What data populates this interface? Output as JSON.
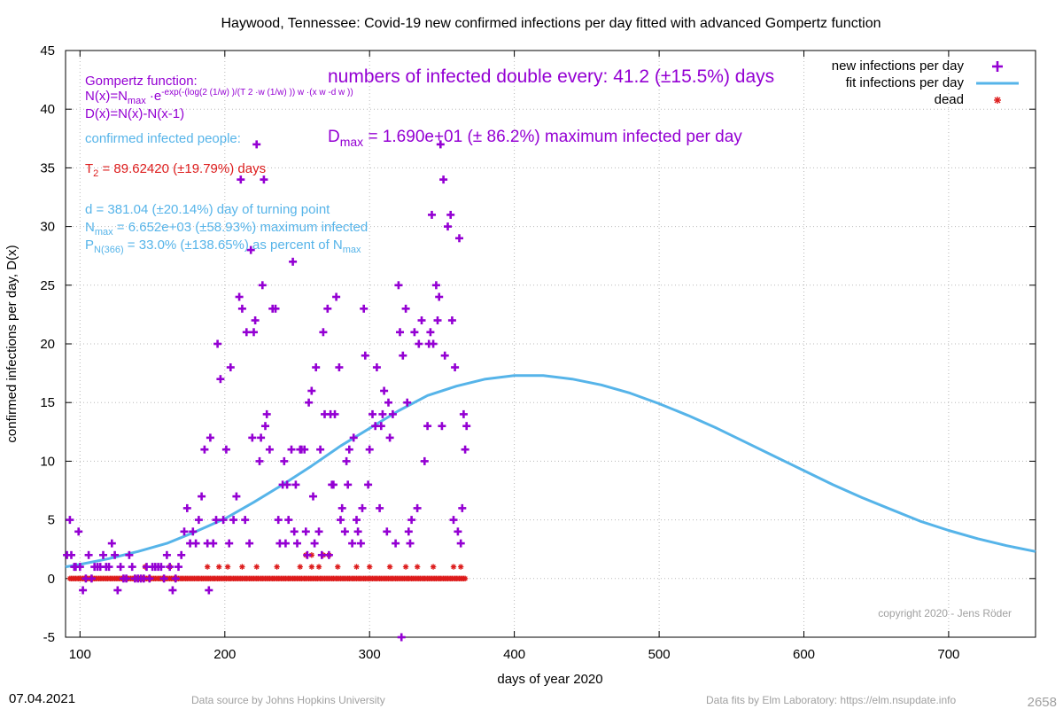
{
  "chart_data": {
    "type": "scatter",
    "title": "Haywood,  Tennessee: Covid-19 new confirmed infections per day fitted with advanced Gompertz function",
    "xlabel": "days of year 2020",
    "ylabel": "confirmed infections per day, D(x)",
    "xlim": [
      90,
      760
    ],
    "ylim": [
      -5,
      45
    ],
    "xticks": [
      100,
      200,
      300,
      400,
      500,
      600,
      700
    ],
    "yticks": [
      -5,
      0,
      5,
      10,
      15,
      20,
      25,
      30,
      35,
      40,
      45
    ],
    "grid": true,
    "legend_position": "top-right",
    "series": [
      {
        "name": "new infections per day",
        "kind": "points",
        "color": "#9400d3",
        "points": [
          [
            91,
            2
          ],
          [
            93,
            5
          ],
          [
            94,
            2
          ],
          [
            96,
            1
          ],
          [
            97,
            1
          ],
          [
            99,
            4
          ],
          [
            100,
            1
          ],
          [
            102,
            -1
          ],
          [
            104,
            0
          ],
          [
            106,
            2
          ],
          [
            108,
            0
          ],
          [
            110,
            1
          ],
          [
            112,
            1
          ],
          [
            114,
            1
          ],
          [
            116,
            2
          ],
          [
            118,
            1
          ],
          [
            120,
            1
          ],
          [
            122,
            3
          ],
          [
            124,
            2
          ],
          [
            126,
            -1
          ],
          [
            128,
            1
          ],
          [
            130,
            0
          ],
          [
            132,
            0
          ],
          [
            134,
            2
          ],
          [
            136,
            1
          ],
          [
            138,
            0
          ],
          [
            140,
            0
          ],
          [
            142,
            0
          ],
          [
            144,
            0
          ],
          [
            146,
            1
          ],
          [
            148,
            0
          ],
          [
            150,
            1
          ],
          [
            152,
            1
          ],
          [
            154,
            1
          ],
          [
            156,
            1
          ],
          [
            158,
            0
          ],
          [
            160,
            2
          ],
          [
            162,
            1
          ],
          [
            164,
            -1
          ],
          [
            166,
            0
          ],
          [
            168,
            1
          ],
          [
            170,
            2
          ],
          [
            172,
            4
          ],
          [
            174,
            6
          ],
          [
            176,
            3
          ],
          [
            178,
            4
          ],
          [
            180,
            3
          ],
          [
            182,
            5
          ],
          [
            184,
            7
          ],
          [
            186,
            11
          ],
          [
            188,
            3
          ],
          [
            189,
            -1
          ],
          [
            190,
            12
          ],
          [
            192,
            3
          ],
          [
            194,
            5
          ],
          [
            195,
            20
          ],
          [
            197,
            17
          ],
          [
            199,
            5
          ],
          [
            201,
            11
          ],
          [
            203,
            3
          ],
          [
            204,
            18
          ],
          [
            206,
            5
          ],
          [
            208,
            7
          ],
          [
            210,
            24
          ],
          [
            211,
            34
          ],
          [
            212,
            23
          ],
          [
            214,
            5
          ],
          [
            215,
            21
          ],
          [
            217,
            3
          ],
          [
            218,
            28
          ],
          [
            219,
            12
          ],
          [
            220,
            21
          ],
          [
            221,
            22
          ],
          [
            222,
            37
          ],
          [
            224,
            10
          ],
          [
            225,
            12
          ],
          [
            226,
            25
          ],
          [
            227,
            34
          ],
          [
            228,
            13
          ],
          [
            229,
            14
          ],
          [
            231,
            11
          ],
          [
            233,
            23
          ],
          [
            235,
            23
          ],
          [
            237,
            5
          ],
          [
            238,
            3
          ],
          [
            240,
            8
          ],
          [
            241,
            10
          ],
          [
            242,
            3
          ],
          [
            243,
            8
          ],
          [
            244,
            5
          ],
          [
            246,
            11
          ],
          [
            247,
            27
          ],
          [
            248,
            4
          ],
          [
            249,
            8
          ],
          [
            250,
            3
          ],
          [
            252,
            11
          ],
          [
            253,
            11
          ],
          [
            255,
            11
          ],
          [
            256,
            4
          ],
          [
            257,
            2
          ],
          [
            258,
            15
          ],
          [
            260,
            16
          ],
          [
            261,
            7
          ],
          [
            262,
            3
          ],
          [
            263,
            18
          ],
          [
            265,
            4
          ],
          [
            266,
            11
          ],
          [
            267,
            2
          ],
          [
            268,
            21
          ],
          [
            269,
            14
          ],
          [
            271,
            23
          ],
          [
            272,
            2
          ],
          [
            273,
            14
          ],
          [
            274,
            8
          ],
          [
            275,
            8
          ],
          [
            276,
            14
          ],
          [
            277,
            24
          ],
          [
            279,
            18
          ],
          [
            280,
            5
          ],
          [
            281,
            6
          ],
          [
            283,
            4
          ],
          [
            284,
            10
          ],
          [
            285,
            8
          ],
          [
            286,
            11
          ],
          [
            288,
            3
          ],
          [
            289,
            12
          ],
          [
            291,
            5
          ],
          [
            292,
            4
          ],
          [
            294,
            3
          ],
          [
            295,
            6
          ],
          [
            296,
            23
          ],
          [
            297,
            19
          ],
          [
            299,
            8
          ],
          [
            300,
            11
          ],
          [
            302,
            14
          ],
          [
            304,
            13
          ],
          [
            305,
            18
          ],
          [
            307,
            6
          ],
          [
            308,
            13
          ],
          [
            309,
            14
          ],
          [
            310,
            16
          ],
          [
            312,
            4
          ],
          [
            313,
            15
          ],
          [
            314,
            12
          ],
          [
            316,
            14
          ],
          [
            318,
            3
          ],
          [
            320,
            25
          ],
          [
            321,
            21
          ],
          [
            322,
            -5
          ],
          [
            323,
            19
          ],
          [
            325,
            23
          ],
          [
            326,
            15
          ],
          [
            327,
            4
          ],
          [
            328,
            3
          ],
          [
            329,
            5
          ],
          [
            331,
            21
          ],
          [
            333,
            6
          ],
          [
            334,
            20
          ],
          [
            336,
            22
          ],
          [
            338,
            10
          ],
          [
            340,
            13
          ],
          [
            341,
            20
          ],
          [
            342,
            21
          ],
          [
            343,
            31
          ],
          [
            344,
            20
          ],
          [
            346,
            25
          ],
          [
            347,
            22
          ],
          [
            348,
            24
          ],
          [
            349,
            37
          ],
          [
            350,
            13
          ],
          [
            351,
            34
          ],
          [
            352,
            19
          ],
          [
            354,
            30
          ],
          [
            356,
            31
          ],
          [
            357,
            22
          ],
          [
            358,
            5
          ],
          [
            359,
            18
          ],
          [
            361,
            4
          ],
          [
            362,
            29
          ],
          [
            363,
            3
          ],
          [
            364,
            6
          ],
          [
            365,
            14
          ],
          [
            366,
            11
          ],
          [
            367,
            13
          ]
        ]
      },
      {
        "name": "fit infections per day",
        "kind": "line",
        "color": "#56b4e9",
        "points": [
          [
            90,
            1.0
          ],
          [
            100,
            1.2
          ],
          [
            120,
            1.7
          ],
          [
            140,
            2.3
          ],
          [
            160,
            3.0
          ],
          [
            180,
            4.0
          ],
          [
            200,
            5.1
          ],
          [
            220,
            6.5
          ],
          [
            240,
            8.0
          ],
          [
            260,
            9.6
          ],
          [
            280,
            11.3
          ],
          [
            300,
            12.8
          ],
          [
            320,
            14.3
          ],
          [
            340,
            15.6
          ],
          [
            360,
            16.4
          ],
          [
            380,
            17.0
          ],
          [
            400,
            17.3
          ],
          [
            420,
            17.3
          ],
          [
            440,
            17.0
          ],
          [
            460,
            16.5
          ],
          [
            480,
            15.8
          ],
          [
            500,
            14.9
          ],
          [
            520,
            13.9
          ],
          [
            540,
            12.8
          ],
          [
            560,
            11.6
          ],
          [
            580,
            10.4
          ],
          [
            600,
            9.2
          ],
          [
            620,
            8.0
          ],
          [
            640,
            6.9
          ],
          [
            660,
            5.9
          ],
          [
            680,
            4.9
          ],
          [
            700,
            4.1
          ],
          [
            720,
            3.4
          ],
          [
            740,
            2.8
          ],
          [
            760,
            2.3
          ]
        ]
      },
      {
        "name": "dead",
        "kind": "points",
        "color": "#dd1c1c",
        "points": [
          [
            145,
            1
          ],
          [
            162,
            1
          ],
          [
            188,
            1
          ],
          [
            196,
            1
          ],
          [
            202,
            1
          ],
          [
            212,
            1
          ],
          [
            222,
            1
          ],
          [
            236,
            1
          ],
          [
            252,
            1
          ],
          [
            260,
            1
          ],
          [
            265,
            1
          ],
          [
            278,
            1
          ],
          [
            291,
            1
          ],
          [
            300,
            1
          ],
          [
            314,
            1
          ],
          [
            325,
            1
          ],
          [
            333,
            1
          ],
          [
            344,
            1
          ],
          [
            358,
            1
          ],
          [
            363,
            1
          ],
          [
            256,
            2
          ],
          [
            260,
            2
          ],
          [
            268,
            2
          ],
          [
            272,
            2
          ]
        ],
        "zero_range": [
          93,
          366
        ]
      }
    ],
    "annotations": {
      "gompertz_heading": "Gompertz function:",
      "doubling_time": "numbers of infected double every: 41.2 (±15.5%) days",
      "dmax_symbol": "D",
      "dmax_sub": "max",
      "dmax_text": " = 1.690e+01 (± 86.2%) maximum infected per day",
      "formula_n_prefix": "N(x)=N",
      "formula_n_sub": "max",
      "formula_n_mid": " ·e",
      "formula_n_exp": "-exp(-(log(2 (1/w) )/(T 2 ·w (1/w) )) w ·(x w -d w ))",
      "formula_d": "D(x)=N(x)-N(x-1)",
      "confirmed_heading": "confirmed infected people:",
      "t2_symbol": "T",
      "t2_sub": "2",
      "t2_text": " = 89.62420 (±19.79%) days",
      "d_text": "d = 381.04 (±20.14%) day of turning point",
      "nmax_symbol": "N",
      "nmax_sub": "max",
      "nmax_text": " = 6.652e+03 (±58.93%) maximum infected",
      "pn_symbol": "P",
      "pn_sub": "N(366)",
      "pn_text": " = 33.0% (±138.65%) as percent of N",
      "pn_sub2": "max",
      "copyright": "copyright 2020 - Jens Röder"
    }
  },
  "footer": {
    "date": "07.04.2021",
    "source": "Data source by Johns Hopkins University",
    "fits": "Data fits by Elm Laboratory: https://elm.nsupdate.info",
    "counter": "2658"
  }
}
